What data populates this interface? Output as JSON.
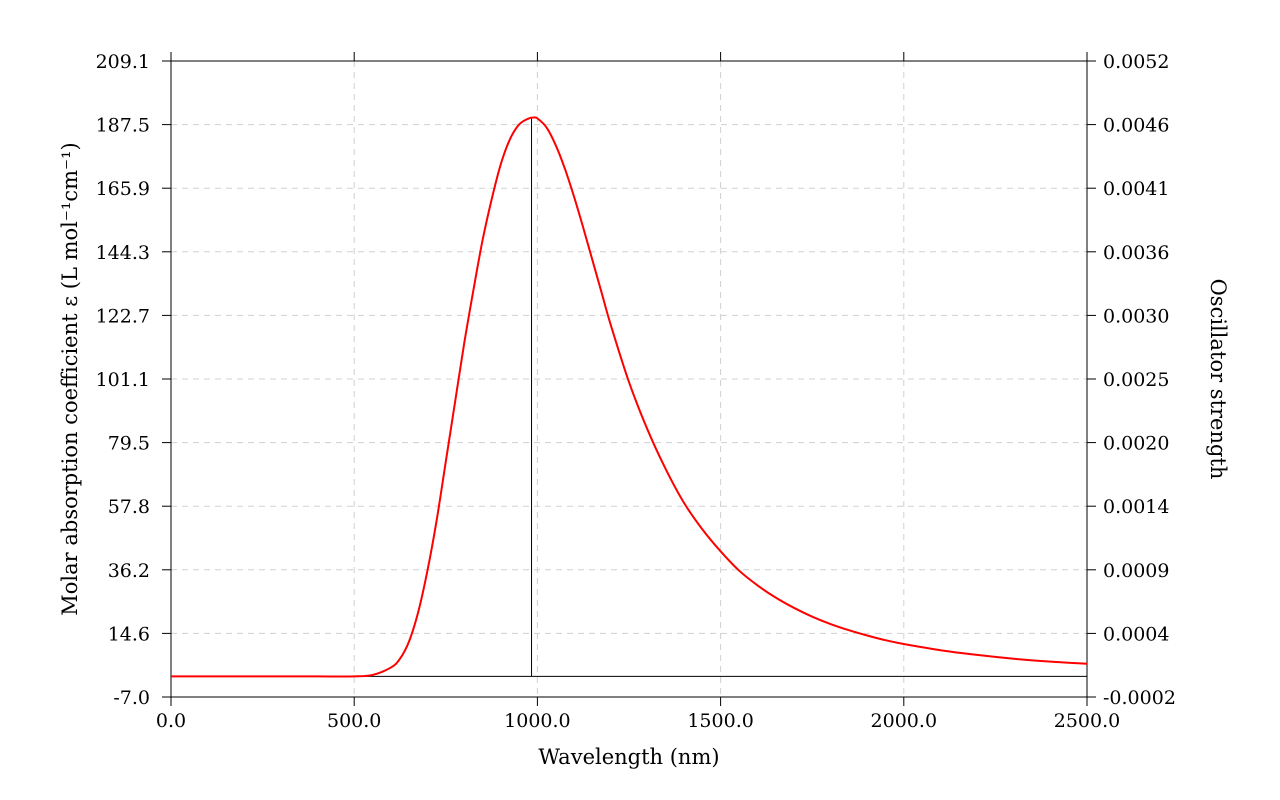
{
  "chart_data": {
    "type": "line",
    "xlabel": "Wavelength (nm)",
    "ylabel": "Molar absorption coefficient  ε (L mol⁻¹cm⁻¹)",
    "y2label": "Oscillator strength",
    "xlim": [
      0,
      2500
    ],
    "ylim": [
      -7.0,
      209.1
    ],
    "y2lim": [
      -0.0002,
      0.0052
    ],
    "x_ticks": [
      "0.0",
      "500.0",
      "1000.0",
      "1500.0",
      "2000.0",
      "2500.0"
    ],
    "y_ticks": [
      "-7.0",
      "14.6",
      "36.2",
      "57.8",
      "79.5",
      "101.1",
      "122.7",
      "144.3",
      "165.9",
      "187.5",
      "209.1"
    ],
    "y2_ticks": [
      "-0.0002",
      "0.0004",
      "0.0009",
      "0.0014",
      "0.0020",
      "0.0025",
      "0.0030",
      "0.0036",
      "0.0041",
      "0.0046",
      "0.0052"
    ],
    "grid": true,
    "series": [
      {
        "color": "#ff0000",
        "x": [
          0,
          100,
          200,
          300,
          400,
          500,
          550,
          600,
          625,
          650,
          675,
          700,
          725,
          750,
          775,
          800,
          825,
          850,
          875,
          900,
          925,
          950,
          975,
          990,
          1000,
          1025,
          1050,
          1075,
          1100,
          1125,
          1150,
          1175,
          1200,
          1250,
          1300,
          1350,
          1400,
          1450,
          1500,
          1550,
          1600,
          1650,
          1700,
          1750,
          1800,
          1850,
          1900,
          1950,
          2000,
          2100,
          2200,
          2300,
          2400,
          2500
        ],
        "y": [
          0,
          0,
          0,
          0,
          0,
          0,
          0.5,
          3,
          6,
          12,
          22,
          36,
          53,
          73,
          93,
          113,
          131,
          148,
          162,
          174,
          182.5,
          187.5,
          189.5,
          189.9,
          189.6,
          186.5,
          180.5,
          172.5,
          163,
          152.5,
          141.5,
          130.5,
          119.5,
          100,
          84,
          70.5,
          59,
          50,
          42.5,
          36,
          31,
          26.8,
          23.3,
          20.3,
          17.8,
          15.7,
          13.9,
          12.3,
          11,
          8.9,
          7.3,
          6.0,
          5.0,
          4.3
        ]
      }
    ],
    "sticks": [
      {
        "x": 984,
        "y": 189.5,
        "color": "#000000"
      }
    ],
    "baseline": 0
  }
}
